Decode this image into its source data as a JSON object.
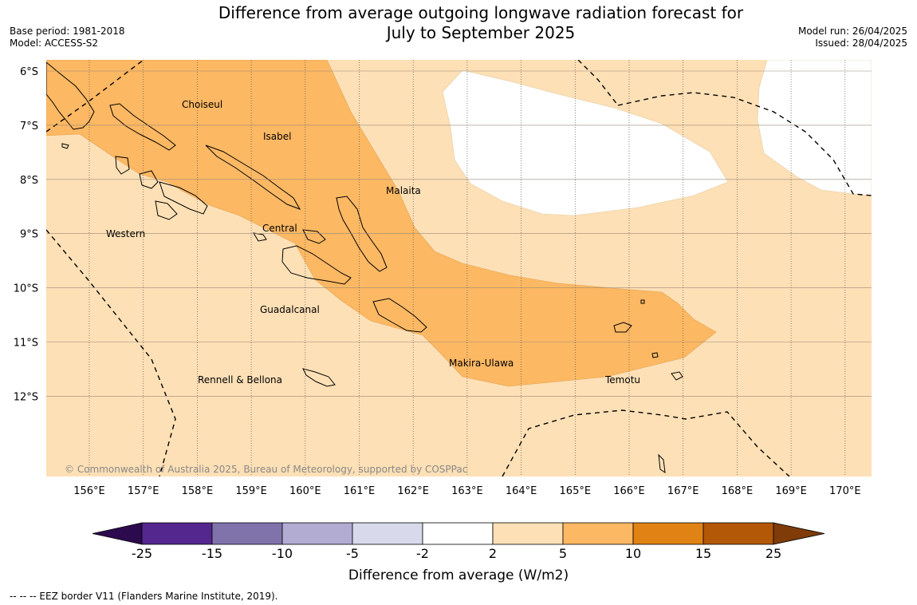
{
  "header": {
    "title_line1": "Difference from average outgoing longwave radiation forecast for",
    "title_line2": "July to September 2025",
    "base_period": "Base period: 1981-2018",
    "model": "Model: ACCESS-S2",
    "model_run": "Model run: 26/04/2025",
    "issued": "Issued: 28/04/2025"
  },
  "map": {
    "lat_labels": [
      "6°S",
      "7°S",
      "8°S",
      "9°S",
      "10°S",
      "11°S",
      "12°S"
    ],
    "lon_labels": [
      "156°E",
      "157°E",
      "158°E",
      "159°E",
      "160°E",
      "161°E",
      "162°E",
      "163°E",
      "164°E",
      "165°E",
      "166°E",
      "167°E",
      "168°E",
      "169°E",
      "170°E"
    ],
    "regions": [
      "Choiseul",
      "Isabel",
      "Malaita",
      "Western",
      "Central",
      "Guadalcanal",
      "Makira-Ulawa",
      "Rennell & Bellona",
      "Temotu"
    ],
    "copyright": "© Commonwealth of Australia 2025, Bureau of Meteorology, supported by COSPPac"
  },
  "legend": {
    "title": "Difference from average (W/m2)",
    "ticks": [
      "-25",
      "-15",
      "-10",
      "-5",
      "-2",
      "2",
      "5",
      "10",
      "15",
      "25"
    ],
    "colors": [
      "#2d0a4e",
      "#54278f",
      "#8073ac",
      "#b2abd2",
      "#d8daeb",
      "#ffffff",
      "#fee0b6",
      "#fdb863",
      "#e08214",
      "#b35806",
      "#7f3b08"
    ]
  },
  "footnote": "--  --  -- EEZ border V11 (Flanders Marine Institute, 2019)."
}
